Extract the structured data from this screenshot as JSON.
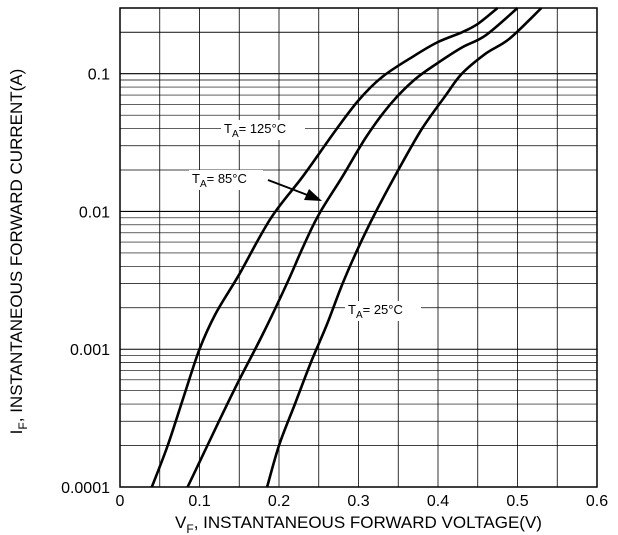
{
  "chart_data": {
    "type": "line",
    "x_scale": "linear",
    "y_scale": "log",
    "xlim": [
      0,
      0.6
    ],
    "ylim": [
      0.0001,
      0.3
    ],
    "x_ticks": [
      {
        "value": 0,
        "label": "0"
      },
      {
        "value": 0.1,
        "label": "0.1"
      },
      {
        "value": 0.2,
        "label": "0.2"
      },
      {
        "value": 0.3,
        "label": "0.3"
      },
      {
        "value": 0.4,
        "label": "0.4"
      },
      {
        "value": 0.5,
        "label": "0.5"
      },
      {
        "value": 0.6,
        "label": "0.6"
      }
    ],
    "y_ticks": [
      {
        "value": 0.0001,
        "label": "0.0001"
      },
      {
        "value": 0.001,
        "label": "0.001"
      },
      {
        "value": 0.01,
        "label": "0.01"
      },
      {
        "value": 0.1,
        "label": "0.1"
      }
    ],
    "xlabel": {
      "main": "V",
      "sub": "F",
      "rest": ", INSTANTANEOUS FORWARD VOLTAGE(V)"
    },
    "ylabel": {
      "main": "I",
      "sub": "F",
      "rest": ", INSTANTANEOUS FORWARD CURRENT(A)"
    },
    "grid": true,
    "line_color": "#000000",
    "series": [
      {
        "name": "TA= 125°C",
        "label": {
          "main": "T",
          "sub": "A",
          "rest": "= 125°C"
        },
        "x": [
          0.04,
          0.06,
          0.08,
          0.1,
          0.12,
          0.15,
          0.19,
          0.23,
          0.27,
          0.3,
          0.33,
          0.37,
          0.4,
          0.43,
          0.45,
          0.475
        ],
        "y": [
          0.0001,
          0.0002,
          0.00045,
          0.001,
          0.0018,
          0.0035,
          0.009,
          0.018,
          0.038,
          0.064,
          0.095,
          0.135,
          0.17,
          0.2,
          0.23,
          0.3
        ]
      },
      {
        "name": "TA= 85°C",
        "label": {
          "main": "T",
          "sub": "A",
          "rest": "= 85°C"
        },
        "x": [
          0.085,
          0.11,
          0.13,
          0.15,
          0.18,
          0.21,
          0.23,
          0.25,
          0.28,
          0.31,
          0.34,
          0.37,
          0.4,
          0.43,
          0.46,
          0.5
        ],
        "y": [
          0.0001,
          0.0002,
          0.00035,
          0.0006,
          0.0013,
          0.003,
          0.0055,
          0.0095,
          0.018,
          0.035,
          0.06,
          0.09,
          0.12,
          0.155,
          0.19,
          0.3
        ]
      },
      {
        "name": "TA= 25°C",
        "label": {
          "main": "T",
          "sub": "A",
          "rest": "= 25°C"
        },
        "x": [
          0.185,
          0.2,
          0.22,
          0.24,
          0.26,
          0.28,
          0.3,
          0.32,
          0.35,
          0.38,
          0.41,
          0.43,
          0.46,
          0.49,
          0.53
        ],
        "y": [
          0.0001,
          0.0002,
          0.0004,
          0.0008,
          0.0015,
          0.003,
          0.0055,
          0.0095,
          0.02,
          0.04,
          0.07,
          0.1,
          0.14,
          0.18,
          0.3
        ]
      }
    ]
  }
}
